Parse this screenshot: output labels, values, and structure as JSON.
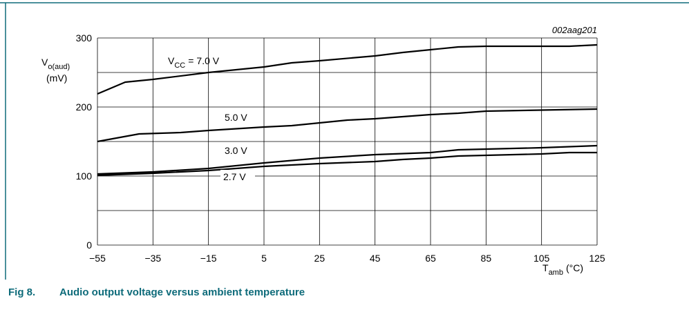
{
  "chart_data": {
    "type": "line",
    "code": "002aag201",
    "figure_number": "Fig 8.",
    "caption": "Audio output voltage versus ambient temperature",
    "y_label": {
      "symbol": "V",
      "subscript": "o(aud)",
      "unit": "(mV)"
    },
    "x_label": {
      "symbol": "T",
      "subscript": "amb",
      "unit": "(°C)"
    },
    "series_label": {
      "symbol": "V",
      "subscript": "CC",
      "equals": "="
    },
    "xlim": [
      -55,
      125
    ],
    "ylim": [
      0,
      300
    ],
    "xticks": [
      {
        "value": -55,
        "label": "−55"
      },
      {
        "value": -35,
        "label": "−35"
      },
      {
        "value": -15,
        "label": "−15"
      },
      5,
      25,
      45,
      65,
      85,
      105,
      125
    ],
    "yticks": [
      0,
      100,
      200,
      300
    ],
    "minor_yticks": [
      50,
      150,
      250
    ],
    "grid": true,
    "series": [
      {
        "name": "7.0 V",
        "color": "#000000",
        "x": [
          -55,
          -45,
          -40,
          -35,
          -15,
          5,
          15,
          25,
          45,
          55,
          65,
          75,
          85,
          105,
          115,
          125
        ],
        "values": [
          219,
          236,
          238,
          240,
          250,
          258,
          264,
          267,
          274,
          279,
          283,
          287,
          288,
          288,
          288,
          290
        ]
      },
      {
        "name": "5.0 V",
        "color": "#000000",
        "x": [
          -55,
          -40,
          -25,
          -15,
          5,
          15,
          25,
          35,
          45,
          65,
          75,
          85,
          125
        ],
        "values": [
          150,
          161,
          163,
          166,
          171,
          173,
          177,
          181,
          183,
          189,
          191,
          194,
          197
        ]
      },
      {
        "name": "3.0 V",
        "color": "#000000",
        "x": [
          -55,
          -35,
          -15,
          5,
          25,
          45,
          65,
          75,
          105,
          125
        ],
        "values": [
          103,
          106,
          111,
          119,
          126,
          131,
          134,
          138,
          141,
          144
        ]
      },
      {
        "name": "2.7 V",
        "color": "#000000",
        "x": [
          -55,
          -35,
          -15,
          5,
          25,
          45,
          55,
          65,
          75,
          85,
          105,
          115,
          125
        ],
        "values": [
          101,
          104,
          108,
          114,
          118,
          121,
          124,
          126,
          129,
          130,
          132,
          134,
          134
        ]
      }
    ]
  }
}
